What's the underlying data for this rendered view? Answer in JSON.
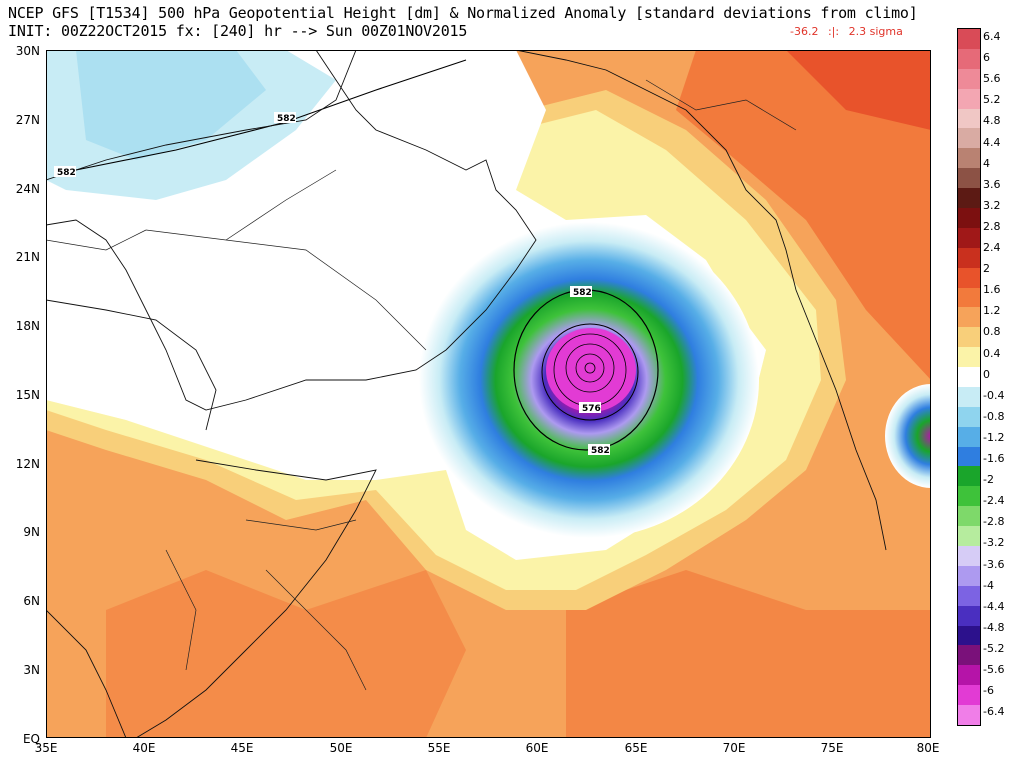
{
  "title": "NCEP GFS [T1534] 500 hPa Geopotential Height [dm] & Normalized Anomaly [standard deviations from climo]",
  "subtitle": "INIT: 00Z22OCT2015 fx: [240] hr --> Sun 00Z01NOV2015",
  "stats": {
    "min": "-36.2",
    "sep": ":|:",
    "max": "2.3 sigma"
  },
  "latitude_labels": [
    "30N",
    "27N",
    "24N",
    "21N",
    "18N",
    "15N",
    "12N",
    "9N",
    "6N",
    "3N",
    "EQ"
  ],
  "longitude_labels": [
    "35E",
    "40E",
    "45E",
    "50E",
    "55E",
    "60E",
    "65E",
    "70E",
    "75E",
    "80E"
  ],
  "contour_labels": [
    "582",
    "582",
    "582",
    "576",
    "582"
  ],
  "colorbar": {
    "labels": [
      "6.4",
      "6",
      "5.6",
      "5.2",
      "4.8",
      "4.4",
      "4",
      "3.6",
      "3.2",
      "2.8",
      "2.4",
      "2",
      "1.6",
      "1.2",
      "0.8",
      "0.4",
      "0",
      "-0.4",
      "-0.8",
      "-1.2",
      "-1.6",
      "-2",
      "-2.4",
      "-2.8",
      "-3.2",
      "-3.6",
      "-4",
      "-4.4",
      "-4.8",
      "-5.2",
      "-5.6",
      "-6",
      "-6.4"
    ],
    "colors": [
      "#d94b57",
      "#e66a78",
      "#ee8a98",
      "#f3a6b2",
      "#f0c7c5",
      "#d9aba3",
      "#b98272",
      "#8c5245",
      "#5c1a14",
      "#7c1010",
      "#a01818",
      "#c9301e",
      "#e8532b",
      "#f27a3c",
      "#f6a35a",
      "#f8cf7a",
      "#fbf3a8",
      "#ffffff",
      "#c8ecf5",
      "#8fd4ee",
      "#57aee7",
      "#2f7ee0",
      "#1aa52b",
      "#3ec23a",
      "#7ed96a",
      "#b6ec9e",
      "#d6ccf6",
      "#ad9af0",
      "#7c63e3",
      "#4a2fc0",
      "#2c118c",
      "#7a117a",
      "#b514a8",
      "#e23bd4",
      "#f07ee8"
    ]
  }
}
